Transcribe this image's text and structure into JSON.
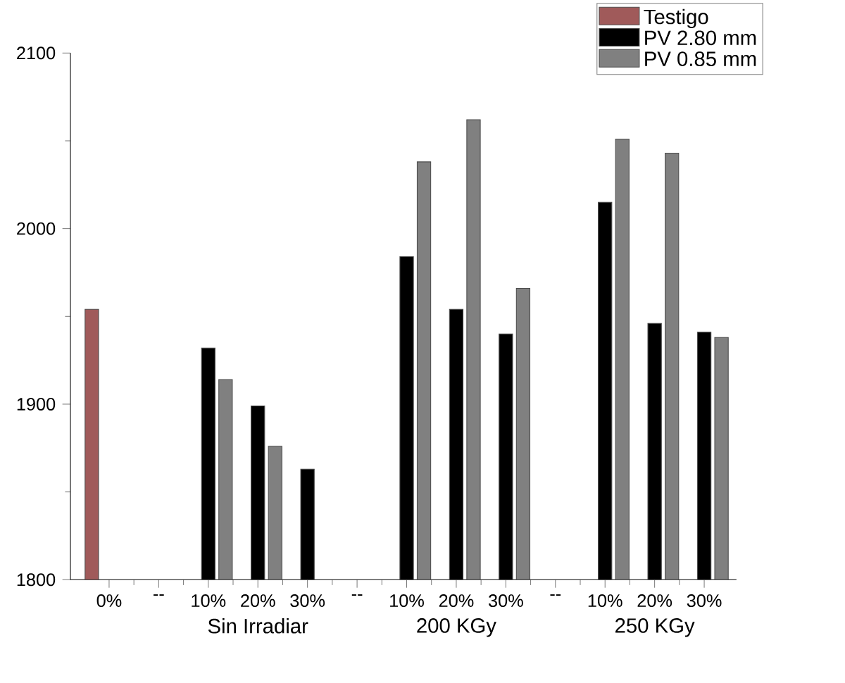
{
  "chart_data": {
    "type": "bar",
    "categories": [
      "0%",
      "--",
      "10%",
      "20%",
      "30%",
      "--",
      "10%",
      "20%",
      "30%",
      "--",
      "10%",
      "20%",
      "30%"
    ],
    "series": [
      {
        "name": "Testigo",
        "color": "#a05a5a",
        "values": [
          1954,
          null,
          null,
          null,
          null,
          null,
          null,
          null,
          null,
          null,
          null,
          null,
          null
        ]
      },
      {
        "name": "PV 2.80 mm",
        "color": "#000000",
        "values": [
          null,
          null,
          1932,
          1899,
          1863,
          null,
          1984,
          1954,
          1940,
          null,
          2015,
          1946,
          1941
        ]
      },
      {
        "name": "PV 0.85 mm",
        "color": "#808080",
        "values": [
          null,
          null,
          1914,
          1876,
          null,
          null,
          2038,
          2062,
          1966,
          null,
          2051,
          2043,
          1938
        ]
      }
    ],
    "ylim": [
      1800,
      2100
    ],
    "yticks": [
      1800,
      1900,
      2000,
      2100
    ],
    "annotations": [
      "Sin Irradiar",
      "200 KGy",
      "250 KGy"
    ],
    "legend": "top right",
    "grid": false
  }
}
